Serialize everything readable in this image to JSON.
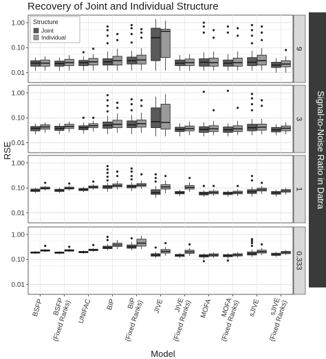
{
  "chart_data": {
    "type": "boxplot",
    "title": "Recovery of Joint and Individual Structure",
    "xlabel": "Model",
    "ylabel": "RSE",
    "facet_label": "Signal-to-Noise Ratio in Datra",
    "y_scale": "log10",
    "ylim": [
      0.004,
      2
    ],
    "y_ticks": [
      "0.01",
      "0.10",
      "1.00"
    ],
    "grid": true,
    "legend": {
      "title": "Structure",
      "placement": "top-left",
      "entries": [
        {
          "name": "Joint",
          "color": "#5a5a5a"
        },
        {
          "name": "Individual",
          "color": "#9a9a9a"
        }
      ]
    },
    "categories": [
      "BSFP",
      "BSFP\n(Fixed Ranks)",
      "UNIFAC",
      "BIP",
      "BIP\n(Fixed Ranks)",
      "JIVE",
      "JIVE\n(Fixed Ranks)",
      "MOFA",
      "MOFA\n(Fixed Ranks)",
      "sJIVE",
      "sJIVE\n(Fixed Ranks)"
    ],
    "facets": [
      {
        "label": "9",
        "joint": [
          {
            "q1": 0.018,
            "med": 0.024,
            "q3": 0.03,
            "wl": 0.012,
            "wh": 0.04,
            "out": []
          },
          {
            "q1": 0.018,
            "med": 0.023,
            "q3": 0.029,
            "wl": 0.012,
            "wh": 0.04,
            "out": []
          },
          {
            "q1": 0.019,
            "med": 0.025,
            "q3": 0.031,
            "wl": 0.012,
            "wh": 0.045,
            "out": [
              0.065
            ]
          },
          {
            "q1": 0.02,
            "med": 0.027,
            "q3": 0.036,
            "wl": 0.012,
            "wh": 0.07,
            "out": [
              0.15,
              0.3,
              0.5,
              0.7
            ]
          },
          {
            "q1": 0.022,
            "med": 0.03,
            "q3": 0.042,
            "wl": 0.012,
            "wh": 0.075,
            "out": [
              0.16,
              0.35,
              0.6,
              0.8
            ]
          },
          {
            "q1": 0.03,
            "med": 0.25,
            "q3": 0.6,
            "wl": 0.012,
            "wh": 1.4,
            "out": []
          },
          {
            "q1": 0.019,
            "med": 0.024,
            "q3": 0.032,
            "wl": 0.012,
            "wh": 0.05,
            "out": []
          },
          {
            "q1": 0.018,
            "med": 0.026,
            "q3": 0.036,
            "wl": 0.012,
            "wh": 0.065,
            "out": [
              0.4,
              0.7,
              1.0
            ]
          },
          {
            "q1": 0.018,
            "med": 0.024,
            "q3": 0.032,
            "wl": 0.012,
            "wh": 0.055,
            "out": [
              0.4,
              0.7
            ]
          },
          {
            "q1": 0.019,
            "med": 0.026,
            "q3": 0.04,
            "wl": 0.012,
            "wh": 0.075,
            "out": [
              0.15,
              0.3,
              0.5,
              0.8
            ]
          },
          {
            "q1": 0.016,
            "med": 0.02,
            "q3": 0.026,
            "wl": 0.01,
            "wh": 0.038,
            "out": []
          }
        ],
        "individual": [
          {
            "q1": 0.018,
            "med": 0.024,
            "q3": 0.032,
            "wl": 0.012,
            "wh": 0.045,
            "out": []
          },
          {
            "q1": 0.019,
            "med": 0.025,
            "q3": 0.034,
            "wl": 0.012,
            "wh": 0.05,
            "out": []
          },
          {
            "q1": 0.02,
            "med": 0.027,
            "q3": 0.037,
            "wl": 0.012,
            "wh": 0.055,
            "out": [
              0.09
            ]
          },
          {
            "q1": 0.02,
            "med": 0.03,
            "q3": 0.045,
            "wl": 0.012,
            "wh": 0.09,
            "out": [
              0.2,
              0.35
            ]
          },
          {
            "q1": 0.022,
            "med": 0.032,
            "q3": 0.05,
            "wl": 0.012,
            "wh": 0.095,
            "out": [
              0.25,
              0.4,
              0.55
            ]
          },
          {
            "q1": 0.04,
            "med": 0.45,
            "q3": 0.55,
            "wl": 0.012,
            "wh": 1.2,
            "out": []
          },
          {
            "q1": 0.019,
            "med": 0.025,
            "q3": 0.035,
            "wl": 0.012,
            "wh": 0.055,
            "out": []
          },
          {
            "q1": 0.018,
            "med": 0.025,
            "q3": 0.038,
            "wl": 0.012,
            "wh": 0.07,
            "out": [
              0.25,
              0.5
            ]
          },
          {
            "q1": 0.018,
            "med": 0.025,
            "q3": 0.038,
            "wl": 0.012,
            "wh": 0.07,
            "out": [
              0.3,
              0.6
            ]
          },
          {
            "q1": 0.02,
            "med": 0.03,
            "q3": 0.05,
            "wl": 0.012,
            "wh": 0.095,
            "out": [
              0.2,
              0.4,
              0.7
            ]
          },
          {
            "q1": 0.017,
            "med": 0.022,
            "q3": 0.03,
            "wl": 0.01,
            "wh": 0.045,
            "out": [
              0.08
            ]
          }
        ]
      },
      {
        "label": "3",
        "joint": [
          {
            "q1": 0.03,
            "med": 0.038,
            "q3": 0.045,
            "wl": 0.022,
            "wh": 0.058,
            "out": []
          },
          {
            "q1": 0.031,
            "med": 0.038,
            "q3": 0.046,
            "wl": 0.022,
            "wh": 0.06,
            "out": []
          },
          {
            "q1": 0.033,
            "med": 0.04,
            "q3": 0.048,
            "wl": 0.023,
            "wh": 0.065,
            "out": [
              0.1
            ]
          },
          {
            "q1": 0.038,
            "med": 0.05,
            "q3": 0.068,
            "wl": 0.022,
            "wh": 0.12,
            "out": [
              0.18,
              0.3,
              0.5,
              0.8
            ]
          },
          {
            "q1": 0.04,
            "med": 0.052,
            "q3": 0.075,
            "wl": 0.022,
            "wh": 0.13,
            "out": [
              0.2,
              0.35,
              0.55
            ]
          },
          {
            "q1": 0.04,
            "med": 0.07,
            "q3": 0.25,
            "wl": 0.018,
            "wh": 0.7,
            "out": []
          },
          {
            "q1": 0.028,
            "med": 0.034,
            "q3": 0.042,
            "wl": 0.018,
            "wh": 0.06,
            "out": []
          },
          {
            "q1": 0.026,
            "med": 0.034,
            "q3": 0.044,
            "wl": 0.018,
            "wh": 0.065,
            "out": [
              1.1
            ]
          },
          {
            "q1": 0.026,
            "med": 0.033,
            "q3": 0.043,
            "wl": 0.018,
            "wh": 0.06,
            "out": [
              1.2
            ]
          },
          {
            "q1": 0.03,
            "med": 0.04,
            "q3": 0.055,
            "wl": 0.02,
            "wh": 0.09,
            "out": [
              0.2,
              0.35,
              0.6,
              0.9
            ]
          },
          {
            "q1": 0.027,
            "med": 0.033,
            "q3": 0.041,
            "wl": 0.02,
            "wh": 0.055,
            "out": []
          }
        ],
        "individual": [
          {
            "q1": 0.035,
            "med": 0.043,
            "q3": 0.052,
            "wl": 0.025,
            "wh": 0.065,
            "out": []
          },
          {
            "q1": 0.037,
            "med": 0.045,
            "q3": 0.055,
            "wl": 0.026,
            "wh": 0.07,
            "out": []
          },
          {
            "q1": 0.04,
            "med": 0.048,
            "q3": 0.058,
            "wl": 0.028,
            "wh": 0.075,
            "out": [
              0.1
            ]
          },
          {
            "q1": 0.04,
            "med": 0.055,
            "q3": 0.08,
            "wl": 0.025,
            "wh": 0.15,
            "out": [
              0.25,
              0.4
            ]
          },
          {
            "q1": 0.042,
            "med": 0.058,
            "q3": 0.082,
            "wl": 0.025,
            "wh": 0.16,
            "out": [
              0.3,
              0.5
            ]
          },
          {
            "q1": 0.035,
            "med": 0.065,
            "q3": 0.35,
            "wl": 0.018,
            "wh": 0.9,
            "out": []
          },
          {
            "q1": 0.03,
            "med": 0.037,
            "q3": 0.047,
            "wl": 0.02,
            "wh": 0.07,
            "out": []
          },
          {
            "q1": 0.028,
            "med": 0.036,
            "q3": 0.048,
            "wl": 0.02,
            "wh": 0.075,
            "out": [
              0.2
            ]
          },
          {
            "q1": 0.028,
            "med": 0.036,
            "q3": 0.048,
            "wl": 0.02,
            "wh": 0.075,
            "out": [
              0.25
            ]
          },
          {
            "q1": 0.032,
            "med": 0.042,
            "q3": 0.056,
            "wl": 0.022,
            "wh": 0.09,
            "out": [
              0.3,
              0.5
            ]
          },
          {
            "q1": 0.03,
            "med": 0.038,
            "q3": 0.047,
            "wl": 0.022,
            "wh": 0.065,
            "out": []
          }
        ]
      },
      {
        "label": "1",
        "joint": [
          {
            "q1": 0.072,
            "med": 0.08,
            "q3": 0.09,
            "wl": 0.062,
            "wh": 0.1,
            "out": []
          },
          {
            "q1": 0.072,
            "med": 0.08,
            "q3": 0.088,
            "wl": 0.062,
            "wh": 0.1,
            "out": []
          },
          {
            "q1": 0.078,
            "med": 0.086,
            "q3": 0.095,
            "wl": 0.068,
            "wh": 0.11,
            "out": []
          },
          {
            "q1": 0.095,
            "med": 0.11,
            "q3": 0.125,
            "wl": 0.07,
            "wh": 0.16,
            "out": [
              0.2,
              0.28,
              0.4,
              0.55,
              0.75
            ]
          },
          {
            "q1": 0.1,
            "med": 0.115,
            "q3": 0.13,
            "wl": 0.075,
            "wh": 0.17,
            "out": [
              0.22,
              0.3,
              0.45,
              0.6
            ]
          },
          {
            "q1": 0.055,
            "med": 0.065,
            "q3": 0.085,
            "wl": 0.04,
            "wh": 0.12,
            "out": [
              0.18,
              0.25,
              0.35
            ]
          },
          {
            "q1": 0.058,
            "med": 0.064,
            "q3": 0.072,
            "wl": 0.048,
            "wh": 0.085,
            "out": []
          },
          {
            "q1": 0.052,
            "med": 0.06,
            "q3": 0.068,
            "wl": 0.044,
            "wh": 0.08,
            "out": [
              0.12
            ]
          },
          {
            "q1": 0.054,
            "med": 0.06,
            "q3": 0.068,
            "wl": 0.044,
            "wh": 0.08,
            "out": []
          },
          {
            "q1": 0.06,
            "med": 0.07,
            "q3": 0.085,
            "wl": 0.045,
            "wh": 0.11,
            "out": [
              0.2,
              0.3
            ]
          },
          {
            "q1": 0.056,
            "med": 0.063,
            "q3": 0.072,
            "wl": 0.045,
            "wh": 0.085,
            "out": []
          }
        ],
        "individual": [
          {
            "q1": 0.09,
            "med": 0.098,
            "q3": 0.108,
            "wl": 0.078,
            "wh": 0.12,
            "out": [
              0.16
            ]
          },
          {
            "q1": 0.09,
            "med": 0.098,
            "q3": 0.108,
            "wl": 0.078,
            "wh": 0.12,
            "out": [
              0.15
            ]
          },
          {
            "q1": 0.098,
            "med": 0.108,
            "q3": 0.12,
            "wl": 0.085,
            "wh": 0.14,
            "out": [
              0.18
            ]
          },
          {
            "q1": 0.11,
            "med": 0.125,
            "q3": 0.145,
            "wl": 0.085,
            "wh": 0.19,
            "out": [
              0.3,
              0.45
            ]
          },
          {
            "q1": 0.115,
            "med": 0.13,
            "q3": 0.15,
            "wl": 0.09,
            "wh": 0.2,
            "out": [
              0.35
            ]
          },
          {
            "q1": 0.09,
            "med": 0.11,
            "q3": 0.135,
            "wl": 0.06,
            "wh": 0.2,
            "out": [
              0.3
            ]
          },
          {
            "q1": 0.09,
            "med": 0.105,
            "q3": 0.125,
            "wl": 0.07,
            "wh": 0.17,
            "out": [
              0.25
            ]
          },
          {
            "q1": 0.058,
            "med": 0.066,
            "q3": 0.074,
            "wl": 0.048,
            "wh": 0.088,
            "out": [
              0.12
            ]
          },
          {
            "q1": 0.058,
            "med": 0.066,
            "q3": 0.074,
            "wl": 0.048,
            "wh": 0.088,
            "out": [
              0.12
            ]
          },
          {
            "q1": 0.075,
            "med": 0.085,
            "q3": 0.098,
            "wl": 0.058,
            "wh": 0.12,
            "out": [
              0.16
            ]
          },
          {
            "q1": 0.068,
            "med": 0.076,
            "q3": 0.086,
            "wl": 0.055,
            "wh": 0.1,
            "out": []
          }
        ]
      },
      {
        "label": "0.333",
        "joint": [
          {
            "q1": 0.178,
            "med": 0.19,
            "q3": 0.2,
            "wl": 0.165,
            "wh": 0.215,
            "out": []
          },
          {
            "q1": 0.176,
            "med": 0.188,
            "q3": 0.198,
            "wl": 0.162,
            "wh": 0.212,
            "out": []
          },
          {
            "q1": 0.185,
            "med": 0.198,
            "q3": 0.21,
            "wl": 0.17,
            "wh": 0.228,
            "out": []
          },
          {
            "q1": 0.27,
            "med": 0.3,
            "q3": 0.34,
            "wl": 0.23,
            "wh": 0.42,
            "out": [
              0.6,
              0.8
            ]
          },
          {
            "q1": 0.28,
            "med": 0.32,
            "q3": 0.38,
            "wl": 0.23,
            "wh": 0.5,
            "out": [
              0.7
            ]
          },
          {
            "q1": 0.135,
            "med": 0.15,
            "q3": 0.17,
            "wl": 0.115,
            "wh": 0.2,
            "out": [
              0.3
            ]
          },
          {
            "q1": 0.132,
            "med": 0.145,
            "q3": 0.16,
            "wl": 0.115,
            "wh": 0.18,
            "out": []
          },
          {
            "q1": 0.125,
            "med": 0.14,
            "q3": 0.155,
            "wl": 0.105,
            "wh": 0.175,
            "out": [
              0.085
            ]
          },
          {
            "q1": 0.128,
            "med": 0.142,
            "q3": 0.157,
            "wl": 0.108,
            "wh": 0.178,
            "out": [
              0.09
            ]
          },
          {
            "q1": 0.15,
            "med": 0.17,
            "q3": 0.2,
            "wl": 0.125,
            "wh": 0.25,
            "out": [
              0.35,
              0.45,
              0.55,
              0.65
            ]
          },
          {
            "q1": 0.145,
            "med": 0.16,
            "q3": 0.178,
            "wl": 0.125,
            "wh": 0.2,
            "out": []
          }
        ],
        "individual": [
          {
            "q1": 0.215,
            "med": 0.228,
            "q3": 0.242,
            "wl": 0.2,
            "wh": 0.26,
            "out": [
              0.35
            ]
          },
          {
            "q1": 0.215,
            "med": 0.23,
            "q3": 0.245,
            "wl": 0.2,
            "wh": 0.265,
            "out": [
              0.32
            ]
          },
          {
            "q1": 0.225,
            "med": 0.24,
            "q3": 0.258,
            "wl": 0.205,
            "wh": 0.28,
            "out": [
              0.38
            ]
          },
          {
            "q1": 0.33,
            "med": 0.38,
            "q3": 0.45,
            "wl": 0.26,
            "wh": 0.6,
            "out": []
          },
          {
            "q1": 0.34,
            "med": 0.45,
            "q3": 0.65,
            "wl": 0.26,
            "wh": 0.9,
            "out": []
          },
          {
            "q1": 0.18,
            "med": 0.21,
            "q3": 0.25,
            "wl": 0.14,
            "wh": 0.32,
            "out": [
              0.45
            ]
          },
          {
            "q1": 0.175,
            "med": 0.2,
            "q3": 0.235,
            "wl": 0.14,
            "wh": 0.29,
            "out": [
              0.4
            ]
          },
          {
            "q1": 0.135,
            "med": 0.15,
            "q3": 0.168,
            "wl": 0.115,
            "wh": 0.19,
            "out": []
          },
          {
            "q1": 0.138,
            "med": 0.152,
            "q3": 0.17,
            "wl": 0.118,
            "wh": 0.195,
            "out": []
          },
          {
            "q1": 0.18,
            "med": 0.205,
            "q3": 0.235,
            "wl": 0.15,
            "wh": 0.29,
            "out": [
              0.4
            ]
          },
          {
            "q1": 0.17,
            "med": 0.19,
            "q3": 0.21,
            "wl": 0.15,
            "wh": 0.24,
            "out": []
          }
        ]
      }
    ]
  }
}
